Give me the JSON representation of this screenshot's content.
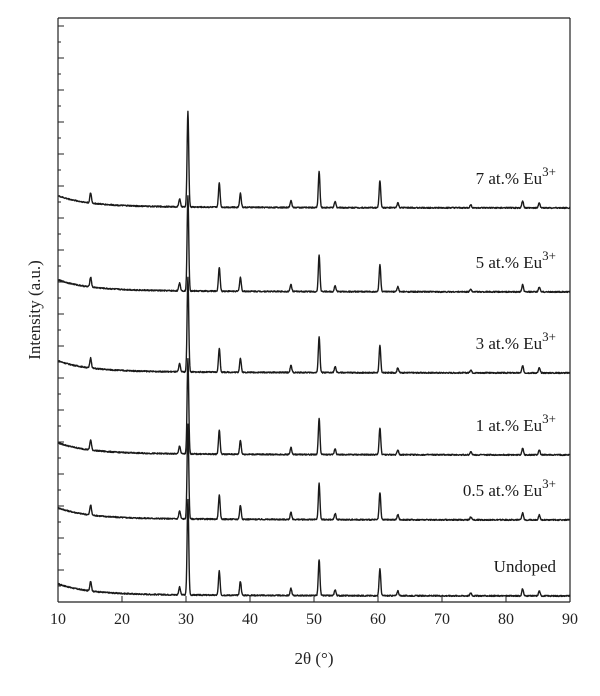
{
  "chart_data": {
    "type": "line",
    "xlabel": "2θ (°)",
    "ylabel": "Intensity (a.u.)",
    "xlim": [
      10,
      90
    ],
    "x_ticks": [
      10,
      20,
      30,
      40,
      50,
      60,
      70,
      80,
      90
    ],
    "y_tick_labels": "none",
    "peaks": [
      {
        "x": 15.1,
        "height": 10
      },
      {
        "x": 29.0,
        "height": 8
      },
      {
        "x": 30.3,
        "height": 95
      },
      {
        "x": 35.2,
        "height": 24
      },
      {
        "x": 38.5,
        "height": 14
      },
      {
        "x": 46.4,
        "height": 7
      },
      {
        "x": 50.8,
        "height": 36
      },
      {
        "x": 53.3,
        "height": 6
      },
      {
        "x": 60.3,
        "height": 27
      },
      {
        "x": 63.1,
        "height": 5
      },
      {
        "x": 74.5,
        "height": 3
      },
      {
        "x": 82.6,
        "height": 7
      },
      {
        "x": 85.2,
        "height": 5
      }
    ],
    "series": [
      {
        "name": "Undoped",
        "label_main": "Undoped",
        "label_sup": "",
        "offset": 0
      },
      {
        "name": "0.5 at.% Eu3+",
        "label_main": "0.5 at.% Eu",
        "label_sup": "3+",
        "offset": 1
      },
      {
        "name": "1 at.% Eu3+",
        "label_main": "1 at.% Eu",
        "label_sup": "3+",
        "offset": 2
      },
      {
        "name": "3 at.% Eu3+",
        "label_main": "3 at.% Eu",
        "label_sup": "3+",
        "offset": 3
      },
      {
        "name": "5 at.% Eu3+",
        "label_main": "5 at.% Eu",
        "label_sup": "3+",
        "offset": 4
      },
      {
        "name": "7 at.% Eu3+",
        "label_main": "7 at.% Eu",
        "label_sup": "3+",
        "offset": 5
      }
    ]
  }
}
